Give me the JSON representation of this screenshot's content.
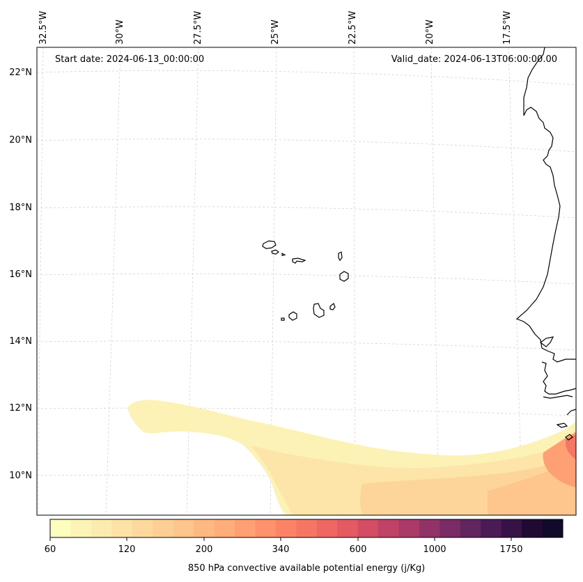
{
  "map": {
    "start_date": "Start date: 2024-06-13_00:00:00",
    "valid_date": "Valid_date: 2024-06-13T06:00:00.00",
    "longitude_labels": [
      "32.5°W",
      "30°W",
      "27.5°W",
      "25°W",
      "22.5°W",
      "20°W",
      "17.5°W"
    ],
    "latitude_labels": [
      "22°N",
      "20°N",
      "18°N",
      "16°N",
      "14°N",
      "12°N",
      "10°N"
    ],
    "features": [
      "Cape Verde islands",
      "West African coastline"
    ],
    "field": "850 hPa convective available potential energy"
  },
  "colorbar": {
    "label": "850 hPa convective available potential energy (j/Kg)",
    "tick_labels": [
      "60",
      "120",
      "200",
      "340",
      "600",
      "1000",
      "1750"
    ],
    "colors": [
      "#fcfdbf",
      "#fcf4b7",
      "#fcebaf",
      "#fde2a6",
      "#fdd99d",
      "#fdcf94",
      "#fec58c",
      "#feb983",
      "#fead7b",
      "#fea074",
      "#fd926d",
      "#fb8468",
      "#f67664",
      "#ee6762",
      "#e35a62",
      "#d34d64",
      "#c04266",
      "#aa3a68",
      "#923368",
      "#792c66",
      "#612560",
      "#4b1b55",
      "#361247",
      "#200a33",
      "#120a2a"
    ]
  }
}
